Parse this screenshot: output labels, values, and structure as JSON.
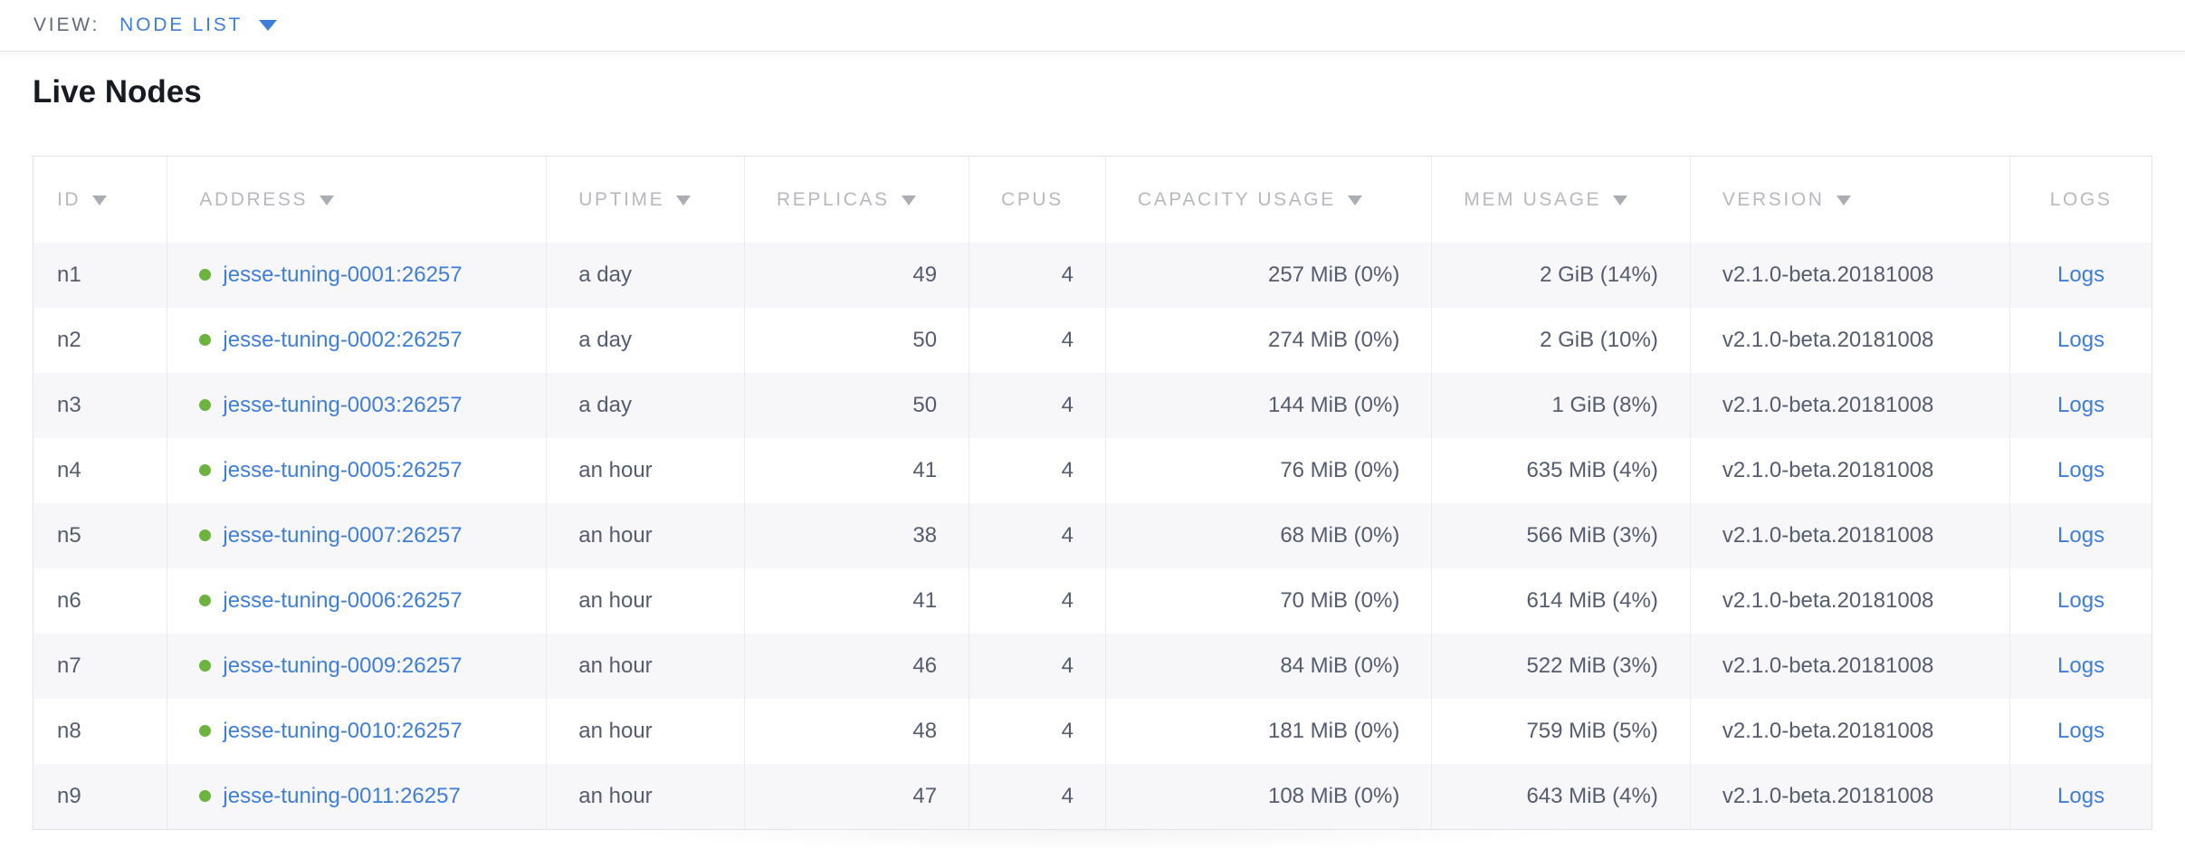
{
  "view_bar": {
    "label": "VIEW:",
    "selected": "NODE LIST",
    "caret_icon": "caret-down-icon"
  },
  "page": {
    "title": "Live Nodes"
  },
  "table": {
    "columns": [
      {
        "key": "id",
        "label": "ID",
        "sortable": true
      },
      {
        "key": "address",
        "label": "ADDRESS",
        "sortable": true
      },
      {
        "key": "uptime",
        "label": "UPTIME",
        "sortable": true
      },
      {
        "key": "replicas",
        "label": "REPLICAS",
        "sortable": true
      },
      {
        "key": "cpus",
        "label": "CPUS",
        "sortable": false
      },
      {
        "key": "capacity_usage",
        "label": "CAPACITY USAGE",
        "sortable": true
      },
      {
        "key": "mem_usage",
        "label": "MEM USAGE",
        "sortable": true
      },
      {
        "key": "version",
        "label": "VERSION",
        "sortable": true
      },
      {
        "key": "logs",
        "label": "LOGS",
        "sortable": false
      }
    ],
    "rows": [
      {
        "id": "n1",
        "status_icon": "node-live-icon",
        "address": "jesse-tuning-0001:26257",
        "uptime": "a day",
        "replicas": "49",
        "cpus": "4",
        "capacity_usage": "257 MiB (0%)",
        "mem_usage": "2 GiB (14%)",
        "version": "v2.1.0-beta.20181008",
        "logs": "Logs"
      },
      {
        "id": "n2",
        "status_icon": "node-live-icon",
        "address": "jesse-tuning-0002:26257",
        "uptime": "a day",
        "replicas": "50",
        "cpus": "4",
        "capacity_usage": "274 MiB (0%)",
        "mem_usage": "2 GiB (10%)",
        "version": "v2.1.0-beta.20181008",
        "logs": "Logs"
      },
      {
        "id": "n3",
        "status_icon": "node-live-icon",
        "address": "jesse-tuning-0003:26257",
        "uptime": "a day",
        "replicas": "50",
        "cpus": "4",
        "capacity_usage": "144 MiB (0%)",
        "mem_usage": "1 GiB (8%)",
        "version": "v2.1.0-beta.20181008",
        "logs": "Logs"
      },
      {
        "id": "n4",
        "status_icon": "node-live-icon",
        "address": "jesse-tuning-0005:26257",
        "uptime": "an hour",
        "replicas": "41",
        "cpus": "4",
        "capacity_usage": "76 MiB (0%)",
        "mem_usage": "635 MiB (4%)",
        "version": "v2.1.0-beta.20181008",
        "logs": "Logs"
      },
      {
        "id": "n5",
        "status_icon": "node-live-icon",
        "address": "jesse-tuning-0007:26257",
        "uptime": "an hour",
        "replicas": "38",
        "cpus": "4",
        "capacity_usage": "68 MiB (0%)",
        "mem_usage": "566 MiB (3%)",
        "version": "v2.1.0-beta.20181008",
        "logs": "Logs"
      },
      {
        "id": "n6",
        "status_icon": "node-live-icon",
        "address": "jesse-tuning-0006:26257",
        "uptime": "an hour",
        "replicas": "41",
        "cpus": "4",
        "capacity_usage": "70 MiB (0%)",
        "mem_usage": "614 MiB (4%)",
        "version": "v2.1.0-beta.20181008",
        "logs": "Logs"
      },
      {
        "id": "n7",
        "status_icon": "node-live-icon",
        "address": "jesse-tuning-0009:26257",
        "uptime": "an hour",
        "replicas": "46",
        "cpus": "4",
        "capacity_usage": "84 MiB (0%)",
        "mem_usage": "522 MiB (3%)",
        "version": "v2.1.0-beta.20181008",
        "logs": "Logs"
      },
      {
        "id": "n8",
        "status_icon": "node-live-icon",
        "address": "jesse-tuning-0010:26257",
        "uptime": "an hour",
        "replicas": "48",
        "cpus": "4",
        "capacity_usage": "181 MiB (0%)",
        "mem_usage": "759 MiB (5%)",
        "version": "v2.1.0-beta.20181008",
        "logs": "Logs"
      },
      {
        "id": "n9",
        "status_icon": "node-live-icon",
        "address": "jesse-tuning-0011:26257",
        "uptime": "an hour",
        "replicas": "47",
        "cpus": "4",
        "capacity_usage": "108 MiB (0%)",
        "mem_usage": "643 MiB (4%)",
        "version": "v2.1.0-beta.20181008",
        "logs": "Logs"
      }
    ]
  },
  "colors": {
    "link_blue": "#3f7ed8",
    "live_dot_green": "#6db33f",
    "header_gray": "#b7b9be",
    "cell_text": "#545c70"
  }
}
